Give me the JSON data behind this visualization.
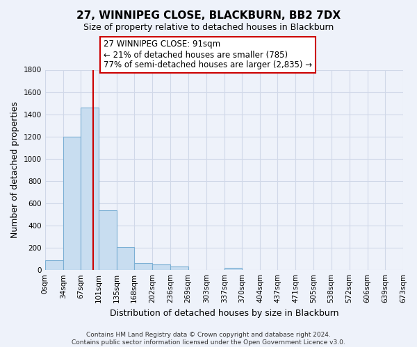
{
  "title": "27, WINNIPEG CLOSE, BLACKBURN, BB2 7DX",
  "subtitle": "Size of property relative to detached houses in Blackburn",
  "xlabel": "Distribution of detached houses by size in Blackburn",
  "ylabel": "Number of detached properties",
  "bin_edges": [
    0,
    34,
    67,
    101,
    135,
    168,
    202,
    236,
    269,
    303,
    337,
    370,
    404,
    437,
    471,
    505,
    538,
    572,
    606,
    639,
    673
  ],
  "bar_heights": [
    90,
    1200,
    1460,
    540,
    205,
    65,
    48,
    30,
    0,
    0,
    20,
    0,
    0,
    0,
    0,
    0,
    0,
    0,
    0,
    0
  ],
  "bar_color": "#c8ddf0",
  "bar_edge_color": "#7bafd4",
  "vline_x": 91,
  "vline_color": "#cc0000",
  "annotation_line1": "27 WINNIPEG CLOSE: 91sqm",
  "annotation_line2": "← 21% of detached houses are smaller (785)",
  "annotation_line3": "77% of semi-detached houses are larger (2,835) →",
  "annotation_box_color": "white",
  "annotation_box_edge_color": "#cc0000",
  "ylim": [
    0,
    1800
  ],
  "yticks": [
    0,
    200,
    400,
    600,
    800,
    1000,
    1200,
    1400,
    1600,
    1800
  ],
  "xtick_labels": [
    "0sqm",
    "34sqm",
    "67sqm",
    "101sqm",
    "135sqm",
    "168sqm",
    "202sqm",
    "236sqm",
    "269sqm",
    "303sqm",
    "337sqm",
    "370sqm",
    "404sqm",
    "437sqm",
    "471sqm",
    "505sqm",
    "538sqm",
    "572sqm",
    "606sqm",
    "639sqm",
    "673sqm"
  ],
  "footer_text": "Contains HM Land Registry data © Crown copyright and database right 2024.\nContains public sector information licensed under the Open Government Licence v3.0.",
  "bg_color": "#eef2fa",
  "grid_color": "#d0d8e8",
  "title_fontsize": 11,
  "subtitle_fontsize": 9,
  "ylabel_fontsize": 9,
  "xlabel_fontsize": 9,
  "tick_fontsize": 7.5,
  "footer_fontsize": 6.5,
  "annot_fontsize": 8.5
}
